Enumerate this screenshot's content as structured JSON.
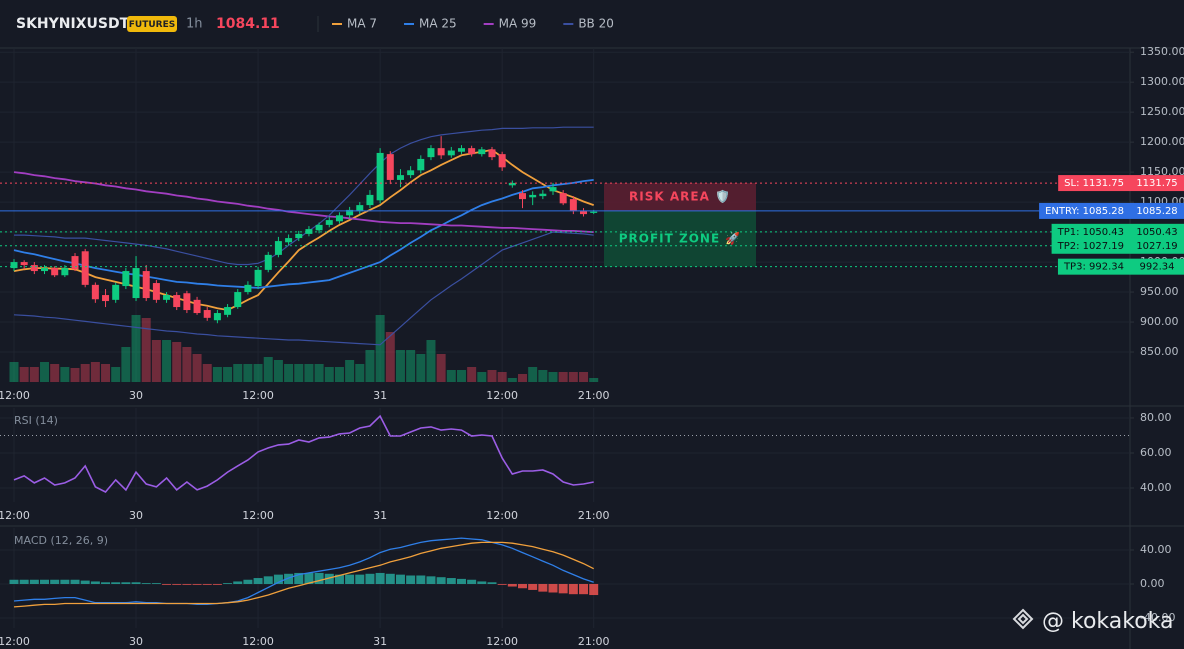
{
  "header": {
    "symbol": "SKHYNIXUSDT",
    "badge": "FUTURES",
    "interval": "1h",
    "price": 1084.11
  },
  "watermark": "@ kokakoka",
  "chart_data": [
    {
      "type": "candlestick",
      "categories": [
        "12:00",
        null,
        null,
        null,
        null,
        null,
        null,
        null,
        null,
        null,
        null,
        null,
        "30",
        null,
        null,
        null,
        null,
        null,
        null,
        null,
        null,
        null,
        null,
        null,
        "12:00",
        null,
        null,
        null,
        null,
        null,
        null,
        null,
        null,
        null,
        null,
        null,
        "31",
        null,
        null,
        null,
        null,
        null,
        null,
        null,
        null,
        null,
        null,
        null,
        "12:00",
        null,
        null,
        null,
        null,
        null,
        null,
        null,
        null,
        "21:00"
      ],
      "open": [
        990,
        1000,
        995,
        985,
        990,
        978,
        1010,
        1018,
        962,
        945,
        937,
        960,
        940,
        985,
        965,
        937,
        945,
        948,
        937,
        920,
        903,
        912,
        925,
        950,
        960,
        987,
        1012,
        1033,
        1040,
        1047,
        1053,
        1062,
        1068,
        1078,
        1085,
        1095,
        1103,
        1180,
        1137,
        1145,
        1153,
        1175,
        1190,
        1178,
        1184,
        1190,
        1180,
        1188,
        1180,
        1128,
        1115,
        1108,
        1110,
        1118,
        1115,
        1105,
        1085,
        1082
      ],
      "high": [
        1005,
        1003,
        1000,
        995,
        993,
        995,
        1015,
        1022,
        966,
        955,
        966,
        990,
        1010,
        995,
        970,
        950,
        950,
        952,
        942,
        925,
        920,
        930,
        955,
        968,
        992,
        1017,
        1042,
        1046,
        1052,
        1060,
        1066,
        1075,
        1083,
        1092,
        1100,
        1120,
        1190,
        1185,
        1155,
        1160,
        1178,
        1195,
        1210,
        1192,
        1195,
        1194,
        1192,
        1192,
        1184,
        1136,
        1120,
        1118,
        1120,
        1132,
        1120,
        1110,
        1090,
        1087
      ],
      "low": [
        985,
        988,
        980,
        980,
        975,
        975,
        985,
        958,
        932,
        925,
        932,
        955,
        935,
        935,
        932,
        932,
        920,
        915,
        912,
        902,
        898,
        908,
        922,
        946,
        955,
        983,
        1008,
        1028,
        1035,
        1043,
        1048,
        1058,
        1064,
        1073,
        1080,
        1090,
        1098,
        1130,
        1125,
        1140,
        1148,
        1170,
        1172,
        1174,
        1180,
        1176,
        1176,
        1170,
        1152,
        1124,
        1090,
        1095,
        1105,
        1112,
        1095,
        1080,
        1076,
        1080
      ],
      "close": [
        1000,
        995,
        985,
        990,
        978,
        990,
        988,
        962,
        938,
        935,
        962,
        985,
        990,
        940,
        937,
        945,
        925,
        920,
        915,
        907,
        915,
        925,
        950,
        962,
        987,
        1012,
        1035,
        1040,
        1047,
        1055,
        1062,
        1070,
        1078,
        1087,
        1095,
        1112,
        1182,
        1137,
        1145,
        1153,
        1172,
        1190,
        1178,
        1186,
        1190,
        1180,
        1188,
        1175,
        1158,
        1132,
        1105,
        1112,
        1114,
        1125,
        1098,
        1085,
        1080,
        1084.11
      ],
      "up_color": "#0ecb81",
      "down_color": "#f6465d",
      "volume": [
        20,
        15,
        15,
        20,
        18,
        15,
        14,
        18,
        20,
        18,
        15,
        35,
        67,
        64,
        42,
        42,
        40,
        35,
        28,
        18,
        15,
        15,
        18,
        18,
        18,
        25,
        22,
        18,
        18,
        18,
        18,
        15,
        15,
        22,
        18,
        32,
        67,
        50,
        32,
        32,
        28,
        42,
        28,
        12,
        12,
        15,
        10,
        12,
        10,
        4,
        8,
        15,
        12,
        10,
        10,
        10,
        10,
        4
      ],
      "volume_lim": [
        0,
        100
      ],
      "series": [
        {
          "name": "MA 7",
          "color": "#f0a03c",
          "values": [
            985,
            988,
            990,
            990,
            989,
            989,
            988,
            982,
            975,
            971,
            967,
            963,
            959,
            955,
            950,
            945,
            940,
            935,
            930,
            927,
            923,
            920,
            928,
            937,
            945,
            964,
            983,
            1001,
            1020,
            1031,
            1041,
            1052,
            1062,
            1070,
            1079,
            1087,
            1095,
            1108,
            1120,
            1133,
            1145,
            1153,
            1162,
            1170,
            1178,
            1181,
            1184,
            1187,
            1175,
            1162,
            1150,
            1140,
            1130,
            1120,
            1114,
            1108,
            1101,
            1095
          ]
        },
        {
          "name": "MA 25",
          "color": "#2f7fe8",
          "values": [
            1020,
            1016,
            1013,
            1009,
            1005,
            1001,
            998,
            994,
            990,
            987,
            984,
            981,
            979,
            976,
            973,
            970,
            967,
            966,
            964,
            963,
            961,
            960,
            959,
            958,
            957,
            959,
            961,
            963,
            964,
            966,
            968,
            970,
            976,
            982,
            988,
            994,
            1000,
            1011,
            1021,
            1032,
            1042,
            1053,
            1061,
            1070,
            1078,
            1087,
            1095,
            1101,
            1106,
            1112,
            1117,
            1123,
            1125,
            1128,
            1130,
            1132,
            1135,
            1137
          ]
        },
        {
          "name": "MA 99",
          "color": "#a23ec2",
          "values": [
            1150,
            1148,
            1145,
            1143,
            1140,
            1138,
            1135,
            1133,
            1131,
            1128,
            1126,
            1123,
            1121,
            1118,
            1116,
            1114,
            1111,
            1109,
            1106,
            1104,
            1101,
            1099,
            1097,
            1094,
            1092,
            1089,
            1087,
            1084,
            1082,
            1080,
            1078,
            1076,
            1075,
            1073,
            1071,
            1069,
            1067,
            1066,
            1065,
            1065,
            1064,
            1063,
            1062,
            1061,
            1061,
            1060,
            1059,
            1058,
            1057,
            1057,
            1056,
            1055,
            1054,
            1053,
            1052,
            1052,
            1051,
            1050
          ]
        },
        {
          "name": "BB 20",
          "color": "#3a4fa0",
          "values": [
            1045,
            1045,
            1044,
            1043,
            1042,
            1040,
            1040,
            1040,
            1038,
            1036,
            1034,
            1032,
            1030,
            1028,
            1025,
            1022,
            1018,
            1014,
            1010,
            1006,
            1002,
            998,
            996,
            996,
            998,
            1005,
            1015,
            1028,
            1040,
            1052,
            1064,
            1078,
            1095,
            1112,
            1130,
            1148,
            1165,
            1180,
            1190,
            1198,
            1204,
            1209,
            1212,
            1214,
            1216,
            1218,
            1220,
            1221,
            1223,
            1223,
            1223,
            1224,
            1224,
            1224,
            1225,
            1225,
            1225,
            1225
          ],
          "lower": [
            912,
            911,
            910,
            908,
            907,
            905,
            903,
            901,
            899,
            897,
            895,
            893,
            891,
            889,
            887,
            885,
            884,
            882,
            880,
            879,
            877,
            876,
            875,
            874,
            873,
            872,
            871,
            870,
            870,
            869,
            868,
            867,
            866,
            865,
            864,
            863,
            862,
            877,
            892,
            907,
            922,
            937,
            949,
            961,
            972,
            984,
            996,
            1008,
            1020,
            1026,
            1032,
            1038,
            1044,
            1050,
            1049,
            1048,
            1047,
            1045
          ]
        }
      ],
      "ylim": [
        800,
        1357
      ],
      "yticks": [
        {
          "value": 850,
          "label": "850.00"
        },
        {
          "value": 900,
          "label": "900.00"
        },
        {
          "value": 950,
          "label": "950.00"
        },
        {
          "value": 1000,
          "label": "1000.00"
        },
        {
          "value": 1050,
          "label": "1050.00"
        },
        {
          "value": 1100,
          "label": "1100.00"
        },
        {
          "value": 1150,
          "label": "1150.00"
        },
        {
          "value": 1200,
          "label": "1200.00"
        },
        {
          "value": 1250,
          "label": "1250.00"
        },
        {
          "value": 1300,
          "label": "1300.00"
        },
        {
          "value": 1350,
          "label": "1350.00"
        }
      ],
      "grid": true,
      "levels": [
        {
          "label": "SL: 1131.75",
          "value": 1131.75,
          "color": "#f6465d",
          "text_color": "#ffffff",
          "style": "dotted"
        },
        {
          "label": "ENTRY: 1085.28",
          "value": 1085.28,
          "color": "#2f6fe4",
          "text_color": "#ffffff",
          "style": "solid"
        },
        {
          "label": "TP1: 1050.43",
          "value": 1050.43,
          "color": "#0ecb81",
          "text_color": "#0b0e11",
          "style": "dotted"
        },
        {
          "label": "TP2: 1027.19",
          "value": 1027.19,
          "color": "#0ecb81",
          "text_color": "#0b0e11",
          "style": "dotted"
        },
        {
          "label": "TP3: 992.34",
          "value": 992.34,
          "color": "#0ecb81",
          "text_color": "#0b0e11",
          "style": "dotted"
        }
      ],
      "zones": [
        {
          "label": "RISK AREA 🛡️",
          "range": [
            1085.28,
            1131.75
          ],
          "color": "#5a1f31",
          "text_color": "#f6465d"
        },
        {
          "label": "PROFIT ZONE 🚀",
          "range": [
            992.34,
            1085.28
          ],
          "color": "#0f4a35",
          "text_color": "#0ecb81"
        }
      ]
    },
    {
      "type": "line",
      "title": "RSI (14)",
      "categories": [
        "12:00",
        null,
        null,
        null,
        null,
        null,
        null,
        null,
        null,
        null,
        null,
        null,
        "30",
        null,
        null,
        null,
        null,
        null,
        null,
        null,
        null,
        null,
        null,
        null,
        "12:00",
        null,
        null,
        null,
        null,
        null,
        null,
        null,
        null,
        null,
        null,
        null,
        "31",
        null,
        null,
        null,
        null,
        null,
        null,
        null,
        null,
        null,
        null,
        null,
        "12:00",
        null,
        null,
        null,
        null,
        null,
        null,
        null,
        null,
        "21:00"
      ],
      "values": [
        44.6,
        46.9,
        42.9,
        45.7,
        41.7,
        42.9,
        45.7,
        52.6,
        40.6,
        37.7,
        44.6,
        38.9,
        49.1,
        42.3,
        40.6,
        45.7,
        38.9,
        43.4,
        38.9,
        41.1,
        44.6,
        49.1,
        52.6,
        56,
        60.6,
        62.9,
        64.6,
        65.1,
        67.4,
        66.3,
        68.6,
        69.1,
        70.9,
        71.4,
        74.3,
        75.4,
        81.1,
        69.7,
        69.7,
        72,
        74.3,
        74.9,
        73.1,
        73.7,
        73.1,
        69.7,
        70.3,
        69.7,
        57.1,
        48,
        49.7,
        49.7,
        50.3,
        48,
        43.4,
        41.7,
        42.3,
        43.4
      ],
      "color": "#9b5de5",
      "reference_line": 70,
      "ylim": [
        32,
        85.7
      ],
      "yticks": [
        {
          "value": 40,
          "label": "40.00"
        },
        {
          "value": 60,
          "label": "60.00"
        },
        {
          "value": 80,
          "label": "80.00"
        }
      ],
      "grid": true
    },
    {
      "type": "macd",
      "title": "MACD (12, 26, 9)",
      "categories": [
        "12:00",
        null,
        null,
        null,
        null,
        null,
        null,
        null,
        null,
        null,
        null,
        null,
        "30",
        null,
        null,
        null,
        null,
        null,
        null,
        null,
        null,
        null,
        null,
        null,
        "12:00",
        null,
        null,
        null,
        null,
        null,
        null,
        null,
        null,
        null,
        null,
        null,
        "31",
        null,
        null,
        null,
        null,
        null,
        null,
        null,
        null,
        null,
        null,
        null,
        "12:00",
        null,
        null,
        null,
        null,
        null,
        null,
        null,
        null,
        "21:00"
      ],
      "macd": {
        "color": "#2f7fe8",
        "values": [
          -20,
          -19,
          -18,
          -18,
          -17,
          -16,
          -16,
          -19,
          -22,
          -22,
          -22,
          -22,
          -21,
          -22,
          -22,
          -23,
          -23,
          -23,
          -24,
          -24,
          -23,
          -22,
          -20,
          -16,
          -10,
          -4,
          2,
          7,
          11,
          13,
          15,
          17,
          19,
          22,
          26,
          31,
          37,
          41,
          43,
          46,
          49,
          51,
          52,
          53,
          54,
          53,
          52,
          49,
          46,
          42,
          37,
          32,
          27,
          22,
          16,
          11,
          6,
          2
        ]
      },
      "signal": {
        "color": "#f0a03c",
        "values": [
          -27,
          -26,
          -25,
          -24,
          -24,
          -23,
          -23,
          -23,
          -23,
          -23,
          -23,
          -23,
          -23,
          -23,
          -23,
          -23,
          -23,
          -23,
          -23,
          -23,
          -23,
          -22,
          -21,
          -19,
          -16,
          -13,
          -9,
          -5,
          -2,
          1,
          4,
          7,
          10,
          13,
          16,
          19,
          22,
          26,
          29,
          32,
          36,
          39,
          42,
          44,
          46,
          48,
          49,
          49,
          49,
          48,
          46,
          44,
          41,
          38,
          34,
          29,
          24,
          18
        ]
      },
      "histogram": {
        "up_color": "#26a69a",
        "down_color": "#ef5350",
        "values": [
          5,
          5,
          5,
          5,
          5,
          5,
          5,
          4,
          3,
          2,
          2,
          2,
          2,
          1,
          1,
          -1,
          -1,
          -1,
          -1,
          -1,
          -1,
          1,
          3,
          5,
          7,
          9,
          11,
          12,
          13,
          13,
          13,
          12,
          11,
          11,
          11,
          12,
          13,
          12,
          11,
          10,
          10,
          9,
          8,
          7,
          6,
          5,
          3,
          2,
          -1,
          -3,
          -5,
          -7,
          -9,
          -10,
          -11,
          -12,
          -12,
          -13
        ]
      },
      "ylim": [
        -51.8,
        65.9
      ],
      "yticks": [
        {
          "value": -40,
          "label": "-40.00"
        },
        {
          "value": 0,
          "label": "0.00"
        },
        {
          "value": 40,
          "label": "40.00"
        }
      ],
      "grid": true
    }
  ]
}
